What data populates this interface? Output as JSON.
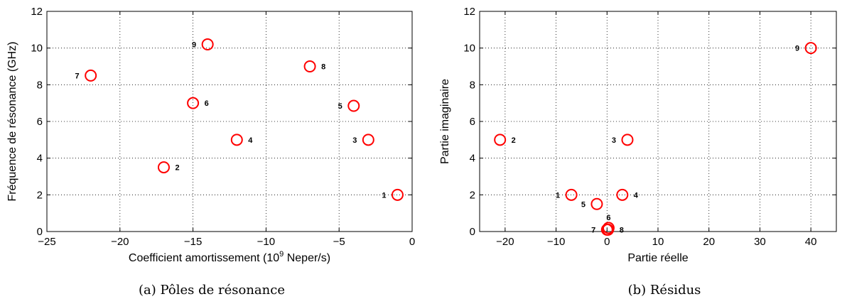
{
  "chart_data": [
    {
      "type": "scatter",
      "caption": "(a) Pôles de résonance",
      "xlabel": "Coefficient amortissement (10",
      "xlabel_sup": "9",
      "xlabel_end": " Neper/s)",
      "ylabel": "Fréquence de résonance (GHz)",
      "xlim": [
        -25,
        0
      ],
      "ylim": [
        0,
        12
      ],
      "xticks": [
        -25,
        -20,
        -15,
        -10,
        -5,
        0
      ],
      "xtick_labels": [
        "−25",
        "−20",
        "−15",
        "−10",
        "−5",
        "0"
      ],
      "yticks": [
        0,
        2,
        4,
        6,
        8,
        10,
        12
      ],
      "ytick_labels": [
        "0",
        "2",
        "4",
        "6",
        "8",
        "10",
        "12"
      ],
      "grid": true,
      "marker_color": "#ff0000",
      "points": [
        {
          "label": "1",
          "x": -1,
          "y": 2,
          "side": "left"
        },
        {
          "label": "2",
          "x": -17,
          "y": 3.5,
          "side": "right"
        },
        {
          "label": "3",
          "x": -3,
          "y": 5,
          "side": "left"
        },
        {
          "label": "4",
          "x": -12,
          "y": 5,
          "side": "right"
        },
        {
          "label": "5",
          "x": -4,
          "y": 6.85,
          "side": "left"
        },
        {
          "label": "6",
          "x": -15,
          "y": 7,
          "side": "right"
        },
        {
          "label": "7",
          "x": -22,
          "y": 8.5,
          "side": "left"
        },
        {
          "label": "8",
          "x": -7,
          "y": 9,
          "side": "right"
        },
        {
          "label": "9",
          "x": -14,
          "y": 10.2,
          "side": "left"
        }
      ]
    },
    {
      "type": "scatter",
      "caption": "(b) Résidus",
      "xlabel": "Partie réelle",
      "ylabel": "Partie imaginaire",
      "xlim": [
        -25,
        45
      ],
      "ylim": [
        0,
        12
      ],
      "xticks": [
        -20,
        -10,
        0,
        10,
        20,
        30,
        40
      ],
      "xtick_labels": [
        "−20",
        "−10",
        "0",
        "10",
        "20",
        "30",
        "40"
      ],
      "yticks": [
        0,
        2,
        4,
        6,
        8,
        10,
        12
      ],
      "ytick_labels": [
        "0",
        "2",
        "4",
        "6",
        "8",
        "10",
        "12"
      ],
      "grid": true,
      "marker_color": "#ff0000",
      "points": [
        {
          "label": "1",
          "x": -7,
          "y": 2,
          "side": "left"
        },
        {
          "label": "2",
          "x": -21,
          "y": 5,
          "side": "right"
        },
        {
          "label": "3",
          "x": 4,
          "y": 5,
          "side": "left"
        },
        {
          "label": "4",
          "x": 3,
          "y": 2,
          "side": "right"
        },
        {
          "label": "5",
          "x": -2,
          "y": 1.5,
          "side": "left"
        },
        {
          "label": "6",
          "x": 0.3,
          "y": 0.2,
          "side": "above"
        },
        {
          "label": "7",
          "x": 0,
          "y": 0.1,
          "side": "left"
        },
        {
          "label": "8",
          "x": 0.2,
          "y": 0.1,
          "side": "right"
        },
        {
          "label": "9",
          "x": 40,
          "y": 10,
          "side": "left"
        }
      ]
    }
  ]
}
